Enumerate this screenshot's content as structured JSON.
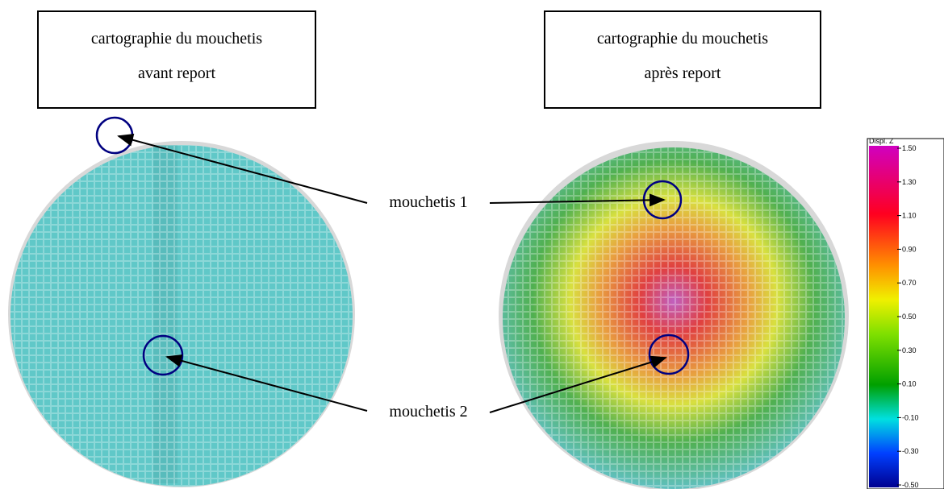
{
  "panels": [
    {
      "title_line1": "cartographie du mouchetis",
      "title_line2": "avant report"
    },
    {
      "title_line1": "cartographie du mouchetis",
      "title_line2": "après report"
    }
  ],
  "annotations": [
    "mouchetis 1",
    "mouchetis 2"
  ],
  "colorbar": {
    "title": "Displ. Z",
    "ticks": [
      "1.50",
      "1.30",
      "1.10",
      "0.90",
      "0.70",
      "0.50",
      "0.30",
      "0.10",
      "-0.10",
      "-0.30",
      "-0.50"
    ]
  }
}
